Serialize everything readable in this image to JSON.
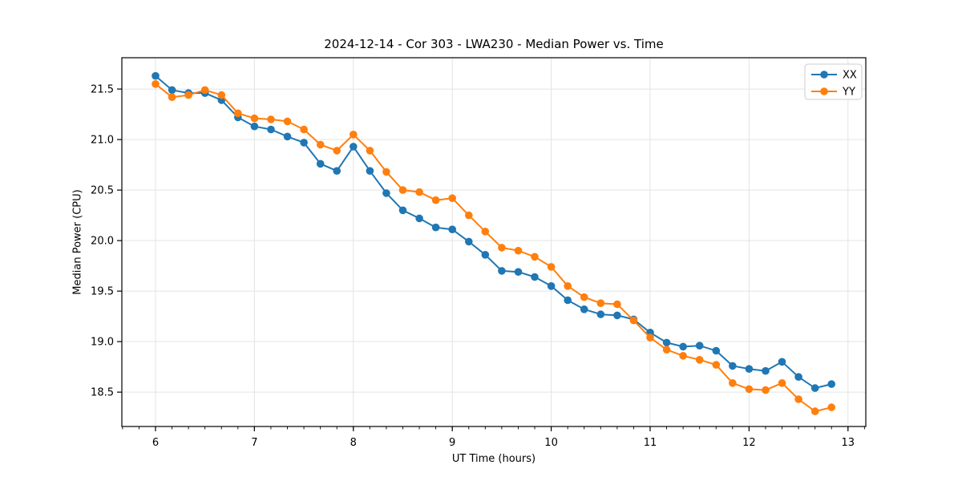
{
  "figure": {
    "background": "#ffffff",
    "text_color": "#000000",
    "grid_color": "#e3e3e3",
    "spine_color": "#000000"
  },
  "chart_data": {
    "type": "line",
    "title": "2024-12-14 - Cor 303 - LWA230 - Median Power vs. Time",
    "xlabel": "UT Time (hours)",
    "ylabel": "Median Power (CPU)",
    "xlim": [
      5.66,
      13.18
    ],
    "ylim": [
      18.16,
      21.81
    ],
    "grid": true,
    "legend_position": "upper right",
    "xtick_values": [
      6,
      7,
      8,
      9,
      10,
      11,
      12,
      13
    ],
    "xtick_labels": [
      "6",
      "7",
      "8",
      "9",
      "10",
      "11",
      "12",
      "13"
    ],
    "x_minor_step": 0.166667,
    "ytick_values": [
      18.5,
      19.0,
      19.5,
      20.0,
      20.5,
      21.0,
      21.5
    ],
    "ytick_labels": [
      "18.5",
      "19.0",
      "19.5",
      "20.0",
      "20.5",
      "21.0",
      "21.5"
    ],
    "x": [
      6.0,
      6.167,
      6.333,
      6.5,
      6.667,
      6.833,
      7.0,
      7.167,
      7.333,
      7.5,
      7.667,
      7.833,
      8.0,
      8.167,
      8.333,
      8.5,
      8.667,
      8.833,
      9.0,
      9.167,
      9.333,
      9.5,
      9.667,
      9.833,
      10.0,
      10.167,
      10.333,
      10.5,
      10.667,
      10.833,
      11.0,
      11.167,
      11.333,
      11.5,
      11.667,
      11.833,
      12.0,
      12.167,
      12.333,
      12.5,
      12.667,
      12.833
    ],
    "series": [
      {
        "name": "XX",
        "color": "#1f77b4",
        "values": [
          21.63,
          21.49,
          21.46,
          21.46,
          21.39,
          21.22,
          21.13,
          21.1,
          21.03,
          20.97,
          20.76,
          20.69,
          20.93,
          20.69,
          20.47,
          20.3,
          20.22,
          20.13,
          20.11,
          19.99,
          19.86,
          19.7,
          19.69,
          19.64,
          19.55,
          19.41,
          19.32,
          19.27,
          19.26,
          19.22,
          19.09,
          18.99,
          18.95,
          18.96,
          18.91,
          18.76,
          18.73,
          18.71,
          18.8,
          18.65,
          18.54,
          18.58
        ]
      },
      {
        "name": "YY",
        "color": "#ff7f0e",
        "values": [
          21.55,
          21.42,
          21.44,
          21.49,
          21.44,
          21.26,
          21.21,
          21.2,
          21.18,
          21.1,
          20.95,
          20.89,
          21.05,
          20.89,
          20.68,
          20.5,
          20.48,
          20.4,
          20.42,
          20.25,
          20.09,
          19.93,
          19.9,
          19.84,
          19.74,
          19.55,
          19.44,
          19.38,
          19.37,
          19.21,
          19.04,
          18.92,
          18.86,
          18.82,
          18.77,
          18.59,
          18.53,
          18.52,
          18.59,
          18.43,
          18.31,
          18.35
        ]
      }
    ]
  }
}
